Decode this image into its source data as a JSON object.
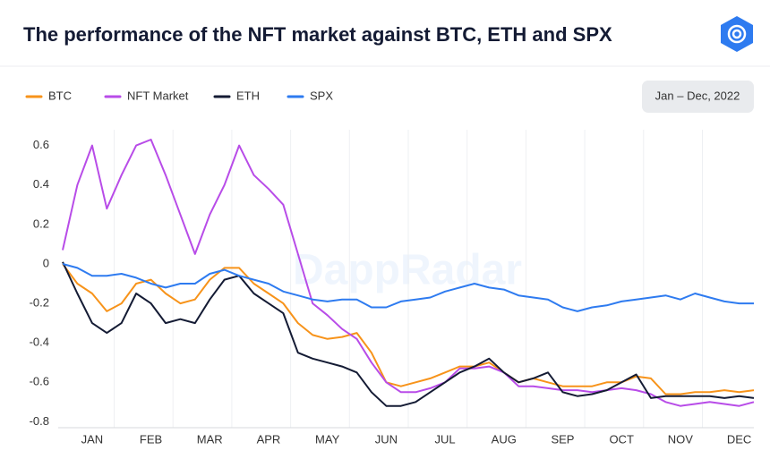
{
  "chart_data": {
    "type": "line",
    "title": "The performance of the NFT market against BTC, ETH and SPX",
    "date_range": "Jan – Dec, 2022",
    "watermark": "DappRadar",
    "categories": [
      null,
      null,
      "JAN",
      null,
      null,
      null,
      "FEB",
      null,
      null,
      null,
      "MAR",
      null,
      null,
      null,
      "APR",
      null,
      null,
      null,
      "MAY",
      null,
      null,
      null,
      "JUN",
      null,
      null,
      null,
      "JUL",
      null,
      null,
      null,
      "AUG",
      null,
      null,
      null,
      "SEP",
      null,
      null,
      null,
      "OCT",
      null,
      null,
      null,
      "NOV",
      null,
      null,
      null,
      "DEC",
      null
    ],
    "series": [
      {
        "name": "BTC",
        "color": "#f7931a",
        "values": [
          0.0,
          -0.1,
          -0.15,
          -0.24,
          -0.2,
          -0.1,
          -0.08,
          -0.15,
          -0.2,
          -0.18,
          -0.08,
          -0.02,
          -0.02,
          -0.1,
          -0.15,
          -0.2,
          -0.3,
          -0.36,
          -0.38,
          -0.37,
          -0.35,
          -0.45,
          -0.6,
          -0.62,
          -0.6,
          -0.58,
          -0.55,
          -0.52,
          -0.52,
          -0.5,
          -0.55,
          -0.6,
          -0.58,
          -0.6,
          -0.62,
          -0.62,
          -0.62,
          -0.6,
          -0.6,
          -0.57,
          -0.58,
          -0.66,
          -0.66,
          -0.65,
          -0.65,
          -0.64,
          -0.65,
          -0.64
        ]
      },
      {
        "name": "NFT Market",
        "color": "#b84ce8",
        "values": [
          0.07,
          0.4,
          0.6,
          0.28,
          0.45,
          0.6,
          0.63,
          0.45,
          0.25,
          0.05,
          0.25,
          0.4,
          0.6,
          0.45,
          0.38,
          0.3,
          0.05,
          -0.2,
          -0.26,
          -0.33,
          -0.38,
          -0.5,
          -0.6,
          -0.65,
          -0.65,
          -0.63,
          -0.6,
          -0.53,
          -0.53,
          -0.52,
          -0.55,
          -0.62,
          -0.62,
          -0.63,
          -0.64,
          -0.64,
          -0.65,
          -0.64,
          -0.63,
          -0.64,
          -0.66,
          -0.7,
          -0.72,
          -0.71,
          -0.7,
          -0.71,
          -0.72,
          -0.7
        ]
      },
      {
        "name": "ETH",
        "color": "#141b34",
        "values": [
          0.01,
          -0.15,
          -0.3,
          -0.35,
          -0.3,
          -0.15,
          -0.2,
          -0.3,
          -0.28,
          -0.3,
          -0.18,
          -0.08,
          -0.06,
          -0.15,
          -0.2,
          -0.25,
          -0.45,
          -0.48,
          -0.5,
          -0.52,
          -0.55,
          -0.65,
          -0.72,
          -0.72,
          -0.7,
          -0.65,
          -0.6,
          -0.55,
          -0.52,
          -0.48,
          -0.55,
          -0.6,
          -0.58,
          -0.55,
          -0.65,
          -0.67,
          -0.66,
          -0.64,
          -0.6,
          -0.56,
          -0.68,
          -0.67,
          -0.67,
          -0.67,
          -0.67,
          -0.68,
          -0.67,
          -0.68
        ]
      },
      {
        "name": "SPX",
        "color": "#2e7bf0",
        "values": [
          0.0,
          -0.02,
          -0.06,
          -0.06,
          -0.05,
          -0.07,
          -0.1,
          -0.12,
          -0.1,
          -0.1,
          -0.05,
          -0.03,
          -0.06,
          -0.08,
          -0.1,
          -0.14,
          -0.16,
          -0.18,
          -0.19,
          -0.18,
          -0.18,
          -0.22,
          -0.22,
          -0.19,
          -0.18,
          -0.17,
          -0.14,
          -0.12,
          -0.1,
          -0.12,
          -0.13,
          -0.16,
          -0.17,
          -0.18,
          -0.22,
          -0.24,
          -0.22,
          -0.21,
          -0.19,
          -0.18,
          -0.17,
          -0.16,
          -0.18,
          -0.15,
          -0.17,
          -0.19,
          -0.2,
          -0.2
        ]
      }
    ],
    "ylim": [
      -0.83,
      0.68
    ],
    "yticks": [
      0.6,
      0.4,
      0.2,
      0,
      -0.2,
      -0.4,
      -0.6,
      -0.8
    ],
    "grid": false
  }
}
